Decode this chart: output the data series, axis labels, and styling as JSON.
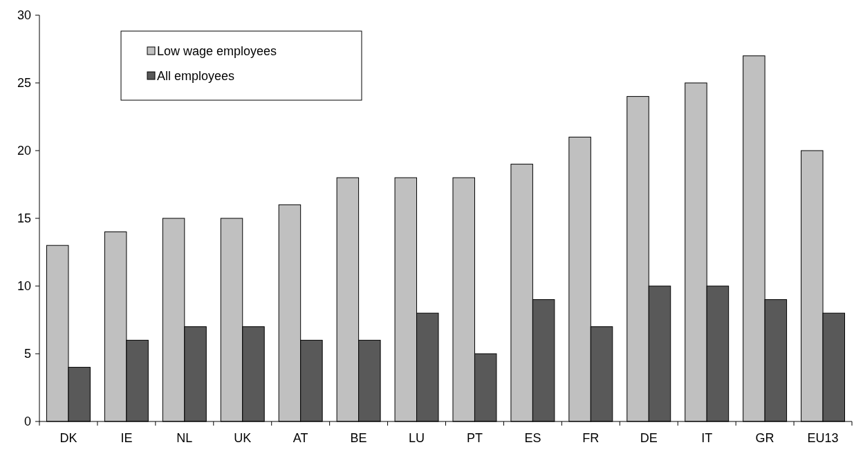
{
  "chart_data": {
    "type": "bar",
    "categories": [
      "DK",
      "IE",
      "NL",
      "UK",
      "AT",
      "BE",
      "LU",
      "PT",
      "ES",
      "FR",
      "DE",
      "IT",
      "GR",
      "EU13"
    ],
    "series": [
      {
        "name": "Low wage employees",
        "color": "#c0c0c0",
        "values": [
          13,
          14,
          15,
          15,
          16,
          18,
          18,
          18,
          19,
          21,
          24,
          25,
          27,
          20
        ]
      },
      {
        "name": "All employees",
        "color": "#595959",
        "values": [
          4,
          6,
          7,
          7,
          6,
          6,
          8,
          5,
          9,
          7,
          10,
          10,
          9,
          8
        ]
      }
    ],
    "ylim": [
      0,
      30
    ],
    "yticks": [
      0,
      5,
      10,
      15,
      20,
      25,
      30
    ],
    "grid": false,
    "legend": "top left"
  }
}
